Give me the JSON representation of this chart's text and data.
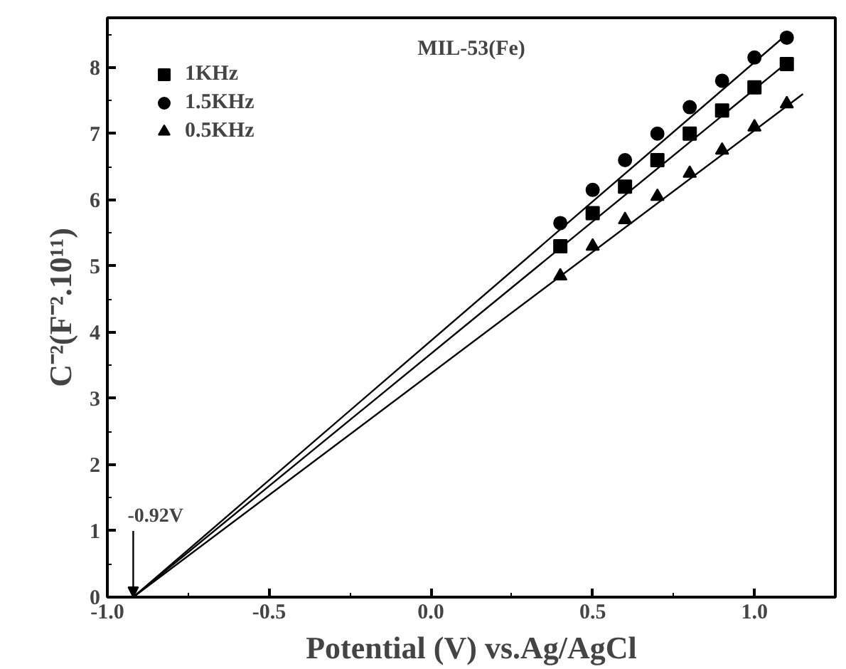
{
  "chart_data": {
    "type": "scatter",
    "title": "MIL-53(Fe)",
    "xlabel": "Potential (V) vs.Ag/AgCl",
    "ylabel": "C⁻²(F⁻².10¹¹)",
    "xlim": [
      -1.0,
      1.25
    ],
    "ylim": [
      0,
      8.75
    ],
    "xticks": [
      {
        "value": -1.0,
        "label": "-1.0"
      },
      {
        "value": -0.75,
        "label": null
      },
      {
        "value": -0.5,
        "label": "-0.5"
      },
      {
        "value": -0.25,
        "label": null
      },
      {
        "value": 0.0,
        "label": "0.0"
      },
      {
        "value": 0.25,
        "label": null
      },
      {
        "value": 0.5,
        "label": "0.5"
      },
      {
        "value": 0.75,
        "label": null
      },
      {
        "value": 1.0,
        "label": "1.0"
      }
    ],
    "yticks": [
      0,
      {
        "value": 0.5,
        "label": null
      },
      1,
      {
        "value": 1.5,
        "label": null
      },
      2,
      {
        "value": 2.5,
        "label": null
      },
      3,
      {
        "value": 3.5,
        "label": null
      },
      4,
      {
        "value": 4.5,
        "label": null
      },
      5,
      {
        "value": 5.5,
        "label": null
      },
      6,
      {
        "value": 6.5,
        "label": null
      },
      7,
      {
        "value": 7.5,
        "label": null
      },
      8,
      {
        "value": 8.5,
        "label": null
      }
    ],
    "x": [
      0.4,
      0.5,
      0.6,
      0.7,
      0.8,
      0.9,
      1.0,
      1.1
    ],
    "legend": "top left",
    "grid": false,
    "series": [
      {
        "name": "1KHz",
        "color": "#000000",
        "marker": "square",
        "values": [
          5.3,
          5.8,
          6.2,
          6.6,
          7.0,
          7.35,
          7.7,
          8.05
        ]
      },
      {
        "name": "1.5KHz",
        "color": "#000000",
        "marker": "circle",
        "values": [
          5.65,
          6.15,
          6.6,
          7.0,
          7.4,
          7.8,
          8.15,
          8.45
        ]
      },
      {
        "name": "0.5KHz",
        "color": "#000000",
        "marker": "triangle",
        "values": [
          4.85,
          5.3,
          5.7,
          6.05,
          6.4,
          6.75,
          7.1,
          7.45
        ]
      },
      {
        "type": "line",
        "color": "#000000",
        "x": [
          -0.92,
          1.1
        ],
        "values": [
          0,
          8.5
        ]
      },
      {
        "type": "line",
        "color": "#000000",
        "x": [
          -0.92,
          1.12
        ],
        "values": [
          0,
          8.15
        ]
      },
      {
        "type": "line",
        "color": "#000000",
        "x": [
          -0.92,
          1.15
        ],
        "values": [
          0,
          7.6
        ]
      }
    ],
    "annotations": [
      {
        "text": "-0.92V",
        "x": -0.92,
        "y": 0
      }
    ]
  }
}
